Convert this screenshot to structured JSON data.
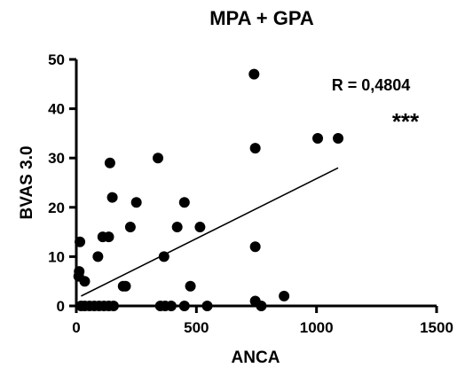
{
  "chart_data": {
    "type": "scatter",
    "title": "MPA + GPA",
    "xlabel": "ANCA",
    "ylabel": "BVAS 3.0",
    "xlim": [
      0,
      1500
    ],
    "ylim": [
      0,
      50
    ],
    "xticks": [
      0,
      500,
      1000,
      1500
    ],
    "yticks": [
      0,
      10,
      20,
      30,
      40,
      50
    ],
    "grid": false,
    "legend": "none",
    "point_color": "#000000",
    "points": [
      {
        "x": 10,
        "y": 6
      },
      {
        "x": 12,
        "y": 7
      },
      {
        "x": 15,
        "y": 13
      },
      {
        "x": 35,
        "y": 5
      },
      {
        "x": 20,
        "y": 0
      },
      {
        "x": 35,
        "y": 0
      },
      {
        "x": 55,
        "y": 0
      },
      {
        "x": 75,
        "y": 0
      },
      {
        "x": 95,
        "y": 0
      },
      {
        "x": 115,
        "y": 0
      },
      {
        "x": 135,
        "y": 0
      },
      {
        "x": 155,
        "y": 0
      },
      {
        "x": 90,
        "y": 10
      },
      {
        "x": 110,
        "y": 14
      },
      {
        "x": 135,
        "y": 14
      },
      {
        "x": 140,
        "y": 29
      },
      {
        "x": 150,
        "y": 22
      },
      {
        "x": 195,
        "y": 4
      },
      {
        "x": 205,
        "y": 4
      },
      {
        "x": 225,
        "y": 16
      },
      {
        "x": 250,
        "y": 21
      },
      {
        "x": 340,
        "y": 30
      },
      {
        "x": 350,
        "y": 0
      },
      {
        "x": 370,
        "y": 0
      },
      {
        "x": 365,
        "y": 10
      },
      {
        "x": 395,
        "y": 0
      },
      {
        "x": 420,
        "y": 16
      },
      {
        "x": 450,
        "y": 21
      },
      {
        "x": 450,
        "y": 0
      },
      {
        "x": 475,
        "y": 4
      },
      {
        "x": 515,
        "y": 16
      },
      {
        "x": 545,
        "y": 0
      },
      {
        "x": 740,
        "y": 47
      },
      {
        "x": 745,
        "y": 32
      },
      {
        "x": 745,
        "y": 12
      },
      {
        "x": 745,
        "y": 1
      },
      {
        "x": 770,
        "y": 0
      },
      {
        "x": 865,
        "y": 2
      },
      {
        "x": 1005,
        "y": 34
      },
      {
        "x": 1090,
        "y": 34
      }
    ],
    "regression_line": {
      "x": [
        20,
        1090
      ],
      "y": [
        2,
        28
      ]
    },
    "annotations": {
      "r_text": "R = 0,4804",
      "significance": "***"
    }
  }
}
